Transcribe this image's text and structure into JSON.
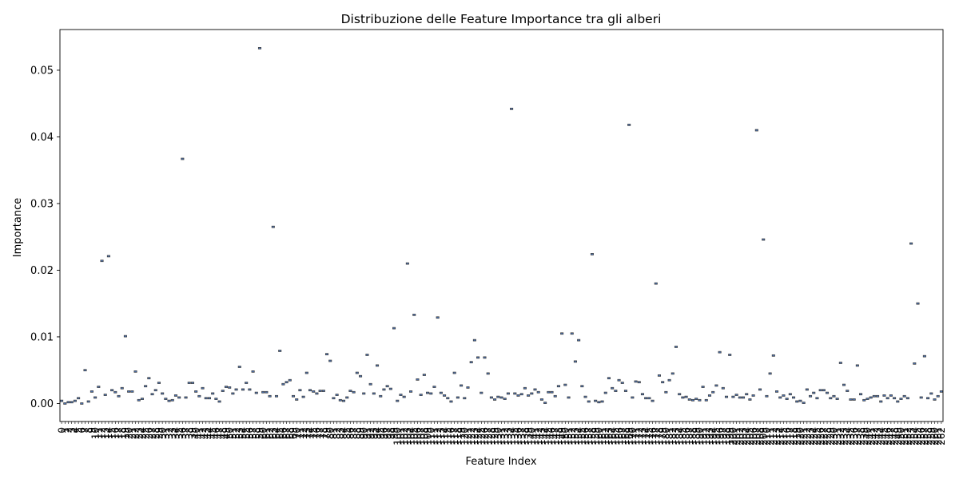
{
  "chart_data": {
    "type": "box",
    "title": "Distribuzione delle Feature Importance tra gli alberi",
    "xlabel": "Feature Index",
    "ylabel": "Importance",
    "ylim": [
      -0.0027,
      0.0561
    ],
    "yticks": [
      0.0,
      0.01,
      0.02,
      0.03,
      0.04,
      0.05
    ],
    "ytick_labels": [
      "0.00",
      "0.01",
      "0.02",
      "0.03",
      "0.04",
      "0.05"
    ],
    "grid": false,
    "legend": "none",
    "box_color": "#4c72b0",
    "outline_color": "#3d3d3d",
    "x_start": 0,
    "values": [
      0.0004,
      0.0,
      0.0002,
      0.0002,
      0.0004,
      0.0008,
      0.0,
      0.005,
      0.0003,
      0.0018,
      0.0009,
      0.0025,
      0.0214,
      0.0013,
      0.0221,
      0.002,
      0.0017,
      0.0011,
      0.0023,
      0.0101,
      0.0018,
      0.0018,
      0.0048,
      0.0005,
      0.0007,
      0.0026,
      0.0038,
      0.0014,
      0.002,
      0.0031,
      0.0015,
      0.0007,
      0.0004,
      0.0005,
      0.0012,
      0.0009,
      0.0367,
      0.0009,
      0.0031,
      0.0031,
      0.0018,
      0.0011,
      0.0023,
      0.0008,
      0.0008,
      0.0015,
      0.0007,
      0.0003,
      0.0019,
      0.0025,
      0.0024,
      0.0015,
      0.0021,
      0.0055,
      0.0021,
      0.0031,
      0.0021,
      0.0048,
      0.0016,
      0.0533,
      0.0017,
      0.0017,
      0.0011,
      0.0265,
      0.0011,
      0.0079,
      0.0029,
      0.0032,
      0.0035,
      0.0011,
      0.0006,
      0.002,
      0.001,
      0.0046,
      0.002,
      0.0018,
      0.0015,
      0.0019,
      0.0019,
      0.0074,
      0.0064,
      0.0008,
      0.0013,
      0.0005,
      0.0004,
      0.0009,
      0.0019,
      0.0017,
      0.0046,
      0.0041,
      0.0015,
      0.0073,
      0.0029,
      0.0015,
      0.0057,
      0.0011,
      0.0021,
      0.0026,
      0.0022,
      0.0113,
      0.0004,
      0.0013,
      0.001,
      0.021,
      0.0018,
      0.0133,
      0.0036,
      0.0013,
      0.0043,
      0.0016,
      0.0015,
      0.0025,
      0.0129,
      0.0016,
      0.0012,
      0.0008,
      0.0003,
      0.0046,
      0.0009,
      0.0027,
      0.0008,
      0.0024,
      0.0062,
      0.0095,
      0.0069,
      0.0016,
      0.0069,
      0.0045,
      0.0009,
      0.0006,
      0.001,
      0.0009,
      0.0007,
      0.0015,
      0.0442,
      0.0015,
      0.0012,
      0.0014,
      0.0023,
      0.0012,
      0.0015,
      0.0021,
      0.0017,
      0.0006,
      0.0001,
      0.0017,
      0.0017,
      0.0011,
      0.0026,
      0.0105,
      0.0028,
      0.0009,
      0.0105,
      0.0063,
      0.0095,
      0.0026,
      0.001,
      0.0003,
      0.0224,
      0.0004,
      0.0002,
      0.0003,
      0.0016,
      0.0038,
      0.0023,
      0.0019,
      0.0035,
      0.0031,
      0.0019,
      0.0418,
      0.0009,
      0.0033,
      0.0032,
      0.0014,
      0.0008,
      0.0008,
      0.0004,
      0.018,
      0.0042,
      0.0032,
      0.0017,
      0.0035,
      0.0045,
      0.0085,
      0.0014,
      0.0009,
      0.001,
      0.0006,
      0.0005,
      0.0007,
      0.0005,
      0.0025,
      0.0005,
      0.0012,
      0.0017,
      0.0027,
      0.0077,
      0.0023,
      0.001,
      0.0073,
      0.001,
      0.0013,
      0.0009,
      0.0009,
      0.0014,
      0.0006,
      0.0012,
      0.041,
      0.0021,
      0.0246,
      0.0011,
      0.0045,
      0.0072,
      0.0018,
      0.0009,
      0.0012,
      0.0007,
      0.0014,
      0.0009,
      0.0003,
      0.0004,
      0.0001,
      0.0021,
      0.0011,
      0.0016,
      0.0008,
      0.002,
      0.002,
      0.0016,
      0.0008,
      0.0011,
      0.0007,
      0.0061,
      0.0028,
      0.0019,
      0.0006,
      0.0006,
      0.0057,
      0.0014,
      0.0005,
      0.0007,
      0.0009,
      0.0011,
      0.0011,
      0.0003,
      0.0012,
      0.0008,
      0.0012,
      0.0008,
      0.0003,
      0.0007,
      0.0011,
      0.0008,
      0.024,
      0.006,
      0.015,
      0.0009,
      0.0071,
      0.0008,
      0.0015,
      0.0006,
      0.0011,
      0.0018
    ]
  }
}
